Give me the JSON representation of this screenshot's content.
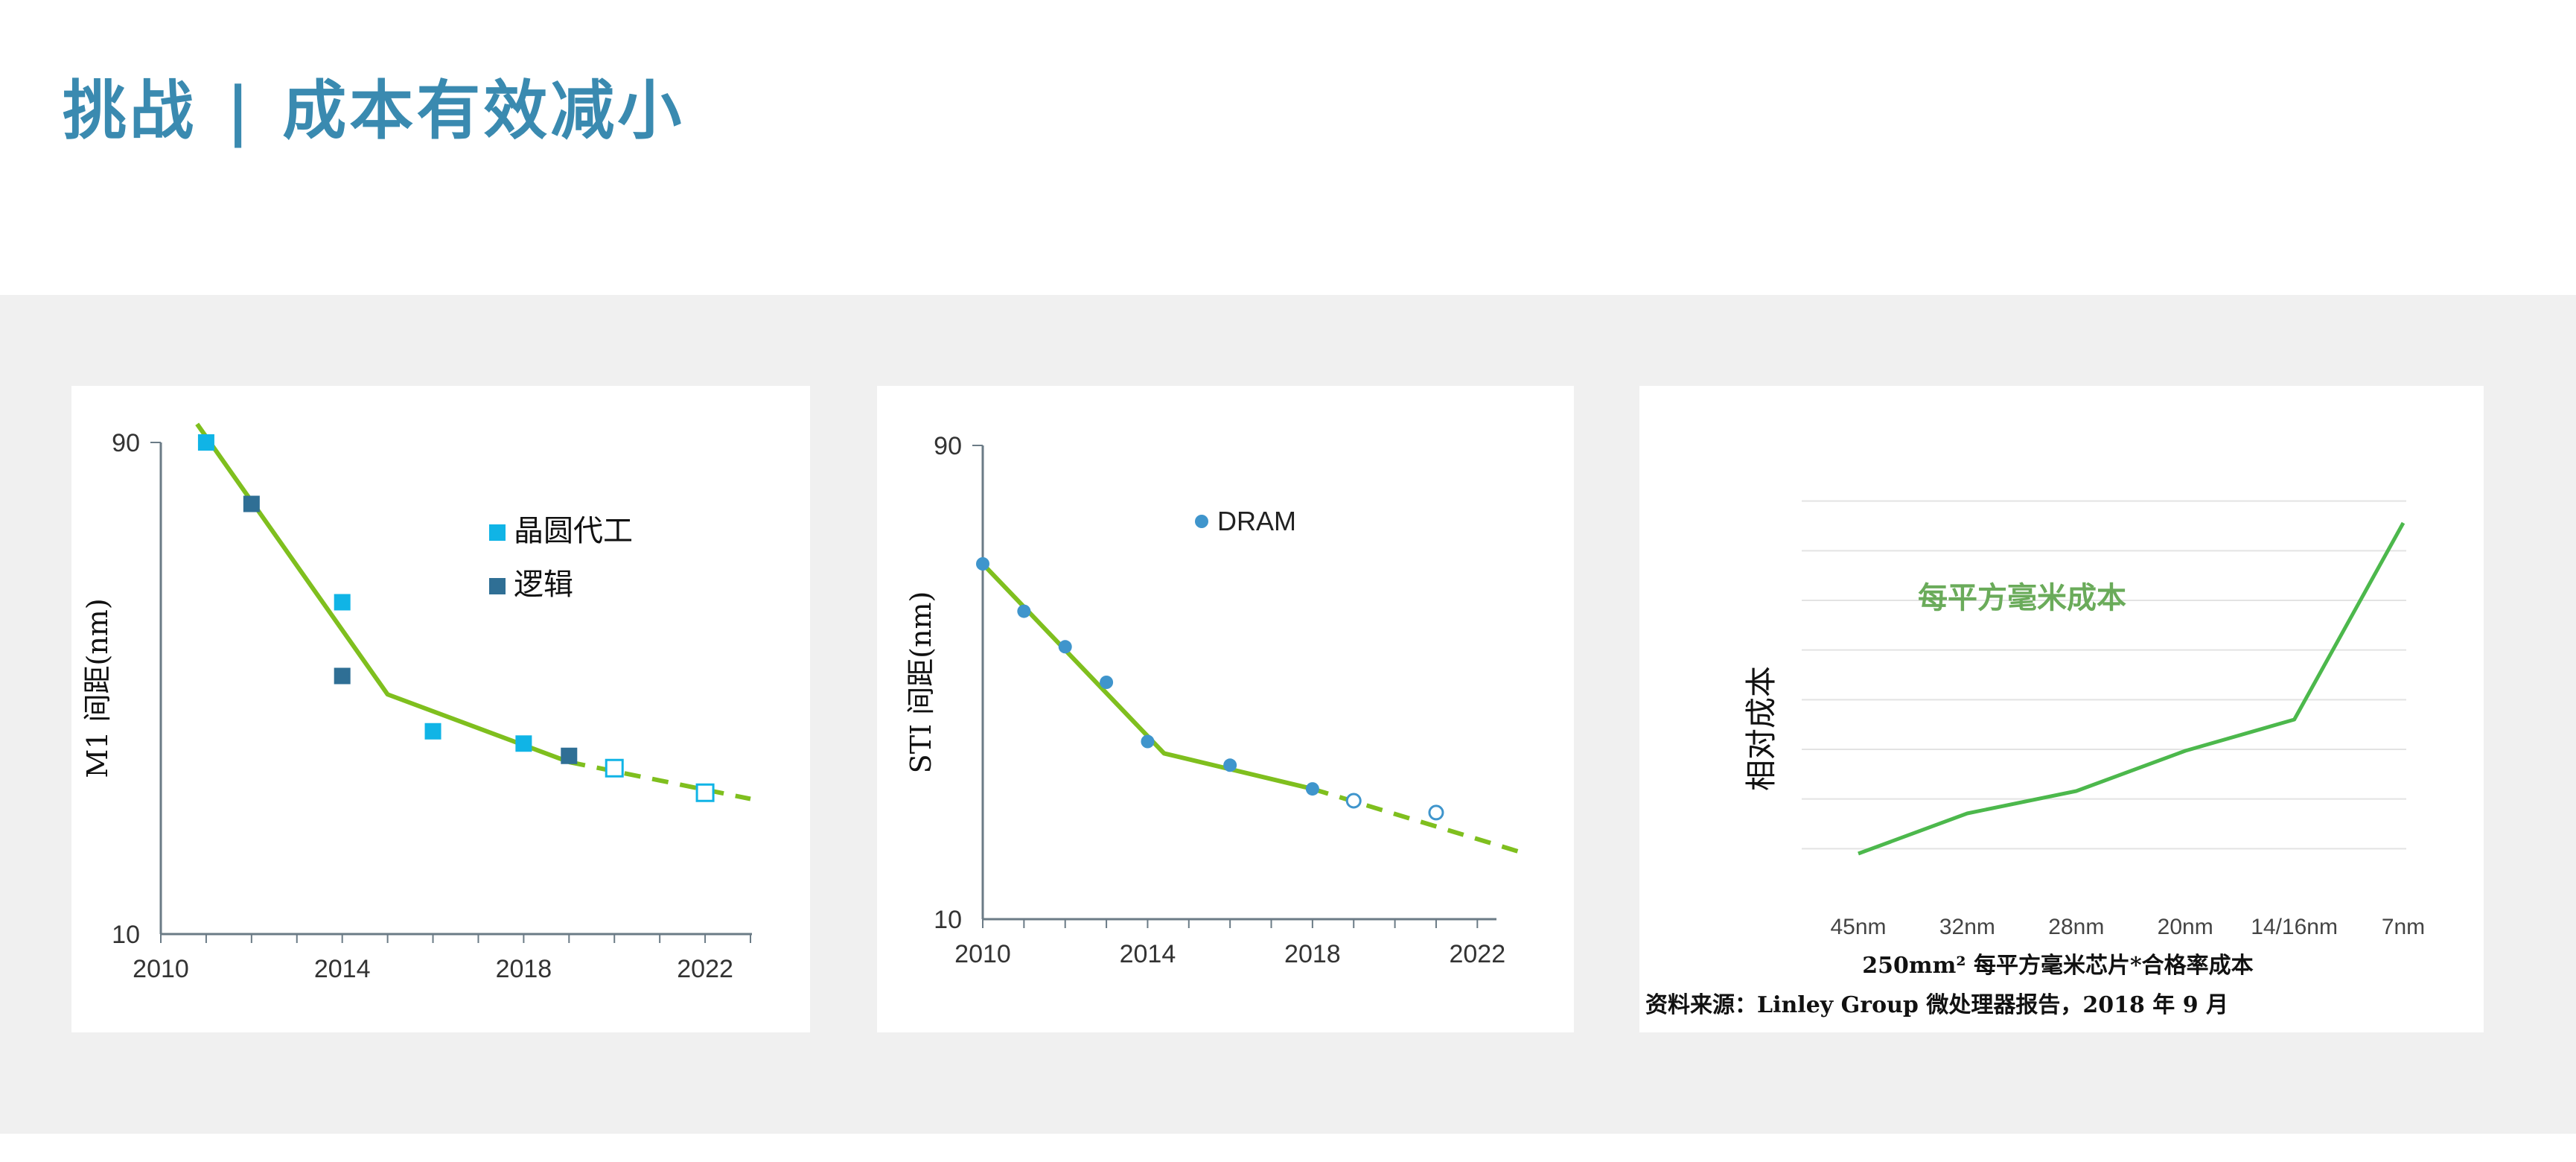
{
  "page": {
    "title_left": "挑战",
    "title_sep": "|",
    "title_right": "成本有效减小",
    "source_note": "资料来源：Linley Group 微处理器报告，2018 年 9 月",
    "accent_color": "#3a8ab0",
    "trend_color": "#7fbf1e",
    "curve_color": "#4cb84c"
  },
  "chart_data": [
    {
      "type": "scatter",
      "ylabel": "M1 间距(nm)",
      "xlabel": "",
      "x_ticks": [
        "2010",
        "2014",
        "2018",
        "2022"
      ],
      "y_ticks": [
        "90",
        "10"
      ],
      "xlim": [
        2010,
        2023
      ],
      "ylim": [
        10,
        90
      ],
      "series": [
        {
          "name": "晶圆代工",
          "color": "#10b4e6",
          "marker": "square",
          "points": [
            [
              2011,
              90
            ],
            [
              2014,
              64
            ],
            [
              2016,
              43
            ],
            [
              2018,
              41
            ],
            [
              2020,
              37
            ],
            [
              2022,
              33
            ]
          ],
          "hollow_from_index": 4
        },
        {
          "name": "逻辑",
          "color": "#2f6f95",
          "marker": "square",
          "points": [
            [
              2012,
              80
            ],
            [
              2014,
              52
            ],
            [
              2019,
              39
            ]
          ]
        }
      ],
      "trend": {
        "solid": [
          [
            2010.8,
            93
          ],
          [
            2015,
            49
          ],
          [
            2019,
            38
          ]
        ],
        "dashed": [
          [
            2019,
            38
          ],
          [
            2023,
            32
          ]
        ]
      }
    },
    {
      "type": "scatter",
      "ylabel": "STI 间距(nm)",
      "xlabel": "",
      "x_ticks": [
        "2010",
        "2014",
        "2018",
        "2022"
      ],
      "y_ticks": [
        "90",
        "10"
      ],
      "xlim": [
        2010,
        2022.5
      ],
      "ylim": [
        10,
        90
      ],
      "series": [
        {
          "name": "DRAM",
          "color": "#3f95cc",
          "marker": "circle",
          "points": [
            [
              2010,
              70
            ],
            [
              2011,
              62
            ],
            [
              2012,
              56
            ],
            [
              2013,
              50
            ],
            [
              2014,
              40
            ],
            [
              2016,
              36
            ],
            [
              2018,
              32
            ],
            [
              2019,
              30
            ],
            [
              2021,
              28
            ]
          ],
          "hollow_from_index": 7
        }
      ],
      "trend": {
        "solid": [
          [
            2010,
            70
          ],
          [
            2014.4,
            38
          ],
          [
            2018,
            32
          ]
        ],
        "dashed": [
          [
            2018,
            32
          ],
          [
            2023.2,
            21
          ]
        ]
      }
    },
    {
      "type": "line",
      "ylabel": "相对成本",
      "xlabel": "250mm² 每平方毫米芯片*合格率成本",
      "annotation": "每平方毫米成本",
      "categories": [
        "45nm",
        "32nm",
        "28nm",
        "20nm",
        "14/16nm",
        "7nm"
      ],
      "series": [
        {
          "name": "",
          "values": [
            1.0,
            1.9,
            2.4,
            3.3,
            4.0,
            8.4
          ]
        }
      ],
      "ylim": [
        0,
        10
      ],
      "grid": true
    }
  ]
}
